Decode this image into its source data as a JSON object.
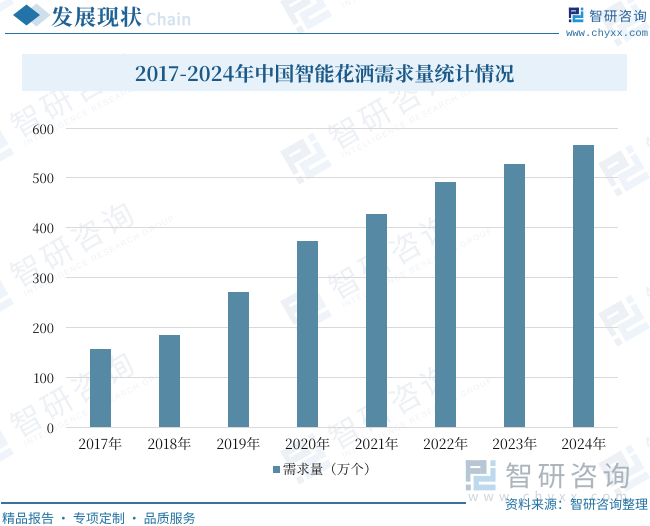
{
  "header": {
    "section_title": "发展现状",
    "section_subtitle": "Chain",
    "brand_name": "智研咨询",
    "brand_url": "www.chyxx.com"
  },
  "title": "2017-2024年中国智能花洒需求量统计情况",
  "chart_data": {
    "type": "bar",
    "title": "2017-2024年中国智能花洒需求量统计情况",
    "categories": [
      "2017年",
      "2018年",
      "2019年",
      "2020年",
      "2021年",
      "2022年",
      "2023年",
      "2024年"
    ],
    "series": [
      {
        "name": "需求量（万个）",
        "values": [
          157,
          185,
          270,
          374,
          428,
          491,
          528,
          565
        ]
      }
    ],
    "xlabel": "",
    "ylabel": "",
    "ylim": [
      0,
      600
    ],
    "yticks": [
      0,
      100,
      200,
      300,
      400,
      500,
      600
    ],
    "grid": "horizontal",
    "legend_position": "bottom",
    "bar_color": "#568aa4"
  },
  "legend": {
    "label": "需求量（万个）"
  },
  "watermark": {
    "brand": "智研咨询",
    "tagline": "INTELLIGENCE RESEARCH GROUP",
    "url": "www.chyxx.com"
  },
  "footer": {
    "source_label": "资料来源：智研咨询整理",
    "services": "精品报告 · 专项定制 · 品质服务"
  },
  "colors": {
    "accent_blue": "#2173a5",
    "bar_fill": "#568aa4",
    "title_text": "#1b5a88",
    "footer_text": "#2273a3",
    "logo_navy": "#1f2d7b",
    "logo_blue": "#2094d6"
  }
}
